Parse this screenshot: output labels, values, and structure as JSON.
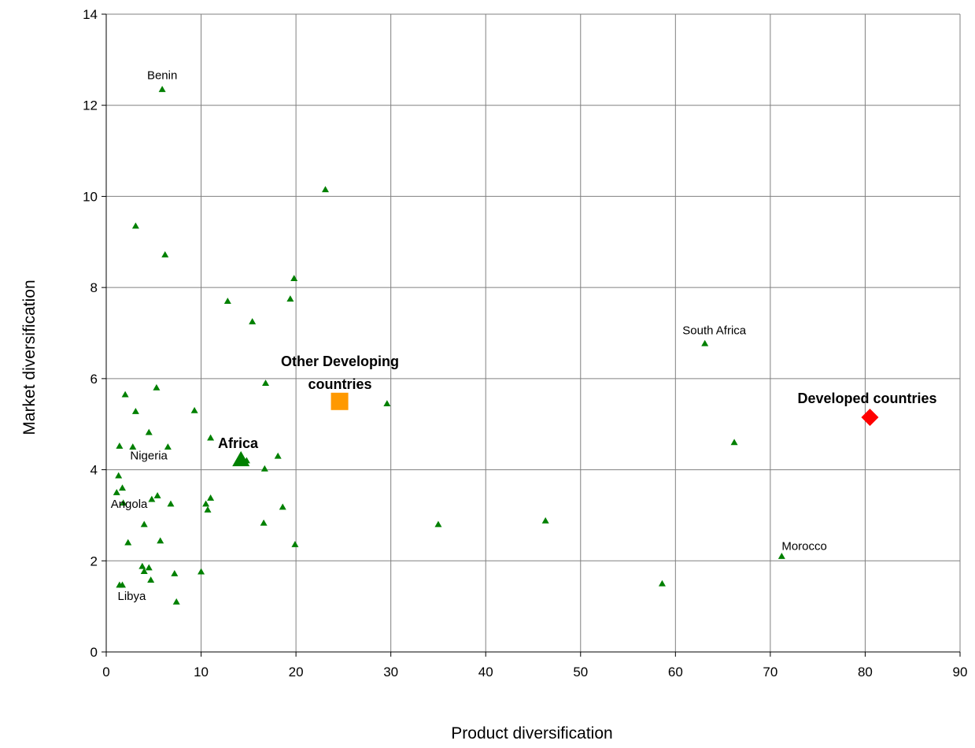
{
  "chart_data": {
    "type": "scatter",
    "xlabel": "Product diversification",
    "ylabel": "Market diversification",
    "xlim": [
      0,
      90
    ],
    "ylim": [
      0,
      14
    ],
    "xticks": [
      0,
      10,
      20,
      30,
      40,
      50,
      60,
      70,
      80,
      90
    ],
    "yticks": [
      0,
      2,
      4,
      6,
      8,
      10,
      12,
      14
    ],
    "grid": true,
    "colors": {
      "countries": "#008000",
      "other_developing": "#ff9900",
      "developed": "#ff0000",
      "grid": "#808080"
    },
    "series": [
      {
        "marker": "triangle",
        "points": [
          {
            "x": 5.9,
            "y": 12.35,
            "label": "Benin"
          },
          {
            "x": 23.1,
            "y": 10.15
          },
          {
            "x": 3.1,
            "y": 9.35
          },
          {
            "x": 6.2,
            "y": 8.72
          },
          {
            "x": 19.8,
            "y": 8.2
          },
          {
            "x": 12.8,
            "y": 7.7
          },
          {
            "x": 19.4,
            "y": 7.75
          },
          {
            "x": 15.4,
            "y": 7.25
          },
          {
            "x": 63.1,
            "y": 6.77,
            "label": "South Africa"
          },
          {
            "x": 16.8,
            "y": 5.9
          },
          {
            "x": 29.6,
            "y": 5.45
          },
          {
            "x": 2.0,
            "y": 5.65
          },
          {
            "x": 5.3,
            "y": 5.8
          },
          {
            "x": 3.1,
            "y": 5.28
          },
          {
            "x": 9.3,
            "y": 5.3
          },
          {
            "x": 4.5,
            "y": 4.82
          },
          {
            "x": 11.0,
            "y": 4.7
          },
          {
            "x": 66.2,
            "y": 4.6
          },
          {
            "x": 1.4,
            "y": 4.52
          },
          {
            "x": 2.8,
            "y": 4.5
          },
          {
            "x": 6.5,
            "y": 4.5,
            "label": "Nigeria"
          },
          {
            "x": 18.1,
            "y": 4.3
          },
          {
            "x": 14.8,
            "y": 4.2
          },
          {
            "x": 16.7,
            "y": 4.02
          },
          {
            "x": 1.3,
            "y": 3.87
          },
          {
            "x": 1.7,
            "y": 3.6
          },
          {
            "x": 1.1,
            "y": 3.5
          },
          {
            "x": 5.4,
            "y": 3.43
          },
          {
            "x": 11.0,
            "y": 3.38
          },
          {
            "x": 4.8,
            "y": 3.35
          },
          {
            "x": 1.8,
            "y": 3.27,
            "label": "Angola"
          },
          {
            "x": 6.8,
            "y": 3.25
          },
          {
            "x": 10.5,
            "y": 3.25
          },
          {
            "x": 18.6,
            "y": 3.18
          },
          {
            "x": 10.7,
            "y": 3.12
          },
          {
            "x": 46.3,
            "y": 2.88
          },
          {
            "x": 16.6,
            "y": 2.83
          },
          {
            "x": 4.0,
            "y": 2.8
          },
          {
            "x": 35.0,
            "y": 2.8
          },
          {
            "x": 5.7,
            "y": 2.44
          },
          {
            "x": 2.3,
            "y": 2.4
          },
          {
            "x": 19.9,
            "y": 2.36
          },
          {
            "x": 71.2,
            "y": 2.1,
            "label": "Morocco"
          },
          {
            "x": 3.8,
            "y": 1.88
          },
          {
            "x": 4.5,
            "y": 1.85
          },
          {
            "x": 4.0,
            "y": 1.77
          },
          {
            "x": 10.0,
            "y": 1.76
          },
          {
            "x": 7.2,
            "y": 1.72
          },
          {
            "x": 4.7,
            "y": 1.58
          },
          {
            "x": 58.6,
            "y": 1.5
          },
          {
            "x": 1.4,
            "y": 1.47
          },
          {
            "x": 1.7,
            "y": 1.47,
            "label": "Libya"
          },
          {
            "x": 7.4,
            "y": 1.1
          }
        ]
      },
      {
        "name": "Africa",
        "marker": "large-triangle",
        "points": [
          {
            "x": 14.2,
            "y": 4.22
          }
        ]
      },
      {
        "name": "Other Developing countries",
        "marker": "square",
        "points": [
          {
            "x": 24.6,
            "y": 5.5
          }
        ]
      },
      {
        "name": "Developed countries",
        "marker": "diamond",
        "points": [
          {
            "x": 80.5,
            "y": 5.15
          }
        ]
      }
    ],
    "annotations": {
      "africa": "Africa",
      "other_line1": "Other Developing",
      "other_line2": "countries",
      "developed": "Developed countries"
    }
  }
}
